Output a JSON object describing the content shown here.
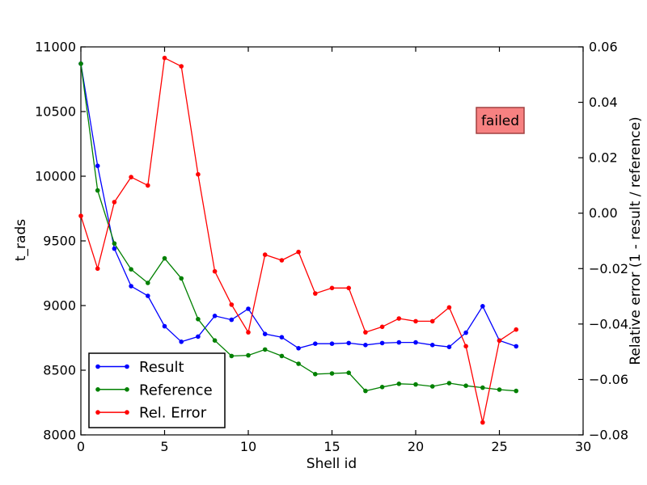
{
  "chart_data": {
    "type": "line",
    "title": "",
    "xlabel": "Shell id",
    "ylabel_left": "t_rads",
    "ylabel_right": "Relative error (1 - result / reference)",
    "xlim": [
      0,
      30
    ],
    "ylim_left": [
      8000,
      11000
    ],
    "ylim_right": [
      -0.08,
      0.06
    ],
    "grid": false,
    "legend_position": "lower left",
    "xticks": [
      0,
      5,
      10,
      15,
      20,
      25,
      30
    ],
    "xtick_labels": [
      "0",
      "5",
      "10",
      "15",
      "20",
      "25",
      "30"
    ],
    "yticks_left": [
      8000,
      8500,
      9000,
      9500,
      10000,
      10500,
      11000
    ],
    "ytick_labels_left": [
      "8000",
      "8500",
      "9000",
      "9500",
      "10000",
      "10500",
      "11000"
    ],
    "yticks_right": [
      0.06,
      0.04,
      0.02,
      0.0,
      -0.02,
      -0.04,
      -0.06,
      -0.08
    ],
    "ytick_labels_right": [
      "0.06",
      "0.04",
      "0.02",
      "0.00",
      "−0.02",
      "−0.04",
      "−0.06",
      "−0.08"
    ],
    "x": [
      0,
      1,
      2,
      3,
      4,
      5,
      6,
      7,
      8,
      9,
      10,
      11,
      12,
      13,
      14,
      15,
      16,
      17,
      18,
      19,
      20,
      21,
      22,
      23,
      24,
      25,
      26
    ],
    "series": [
      {
        "name": "Result",
        "color": "#0000ff",
        "axis": "left",
        "marker": "dot",
        "values": [
          10870,
          10080,
          9440,
          9150,
          9075,
          8840,
          8720,
          8760,
          8920,
          8890,
          8975,
          8780,
          8755,
          8670,
          8705,
          8705,
          8710,
          8695,
          8710,
          8715,
          8715,
          8695,
          8680,
          8790,
          8995,
          8730,
          8685
        ]
      },
      {
        "name": "Reference",
        "color": "#008000",
        "axis": "left",
        "marker": "dot",
        "values": [
          10870,
          9890,
          9480,
          9280,
          9175,
          9365,
          9210,
          8895,
          8730,
          8610,
          8615,
          8660,
          8610,
          8550,
          8470,
          8475,
          8480,
          8340,
          8370,
          8395,
          8390,
          8375,
          8400,
          8380,
          8365,
          8350,
          8340
        ]
      },
      {
        "name": "Rel. Error",
        "color": "#ff0000",
        "axis": "right",
        "marker": "dot",
        "values": [
          -0.001,
          -0.02,
          0.004,
          0.013,
          0.01,
          0.056,
          0.053,
          0.014,
          -0.021,
          -0.033,
          -0.043,
          -0.015,
          -0.017,
          -0.014,
          -0.029,
          -0.027,
          -0.027,
          -0.043,
          -0.041,
          -0.038,
          -0.039,
          -0.039,
          -0.034,
          -0.048,
          -0.0755,
          -0.046,
          -0.042
        ]
      }
    ],
    "annotation": {
      "text": "failed",
      "fill": "#f78181",
      "border": "#a04040"
    }
  },
  "legend": {
    "entries": [
      {
        "label": "Result"
      },
      {
        "label": "Reference"
      },
      {
        "label": "Rel. Error"
      }
    ]
  }
}
